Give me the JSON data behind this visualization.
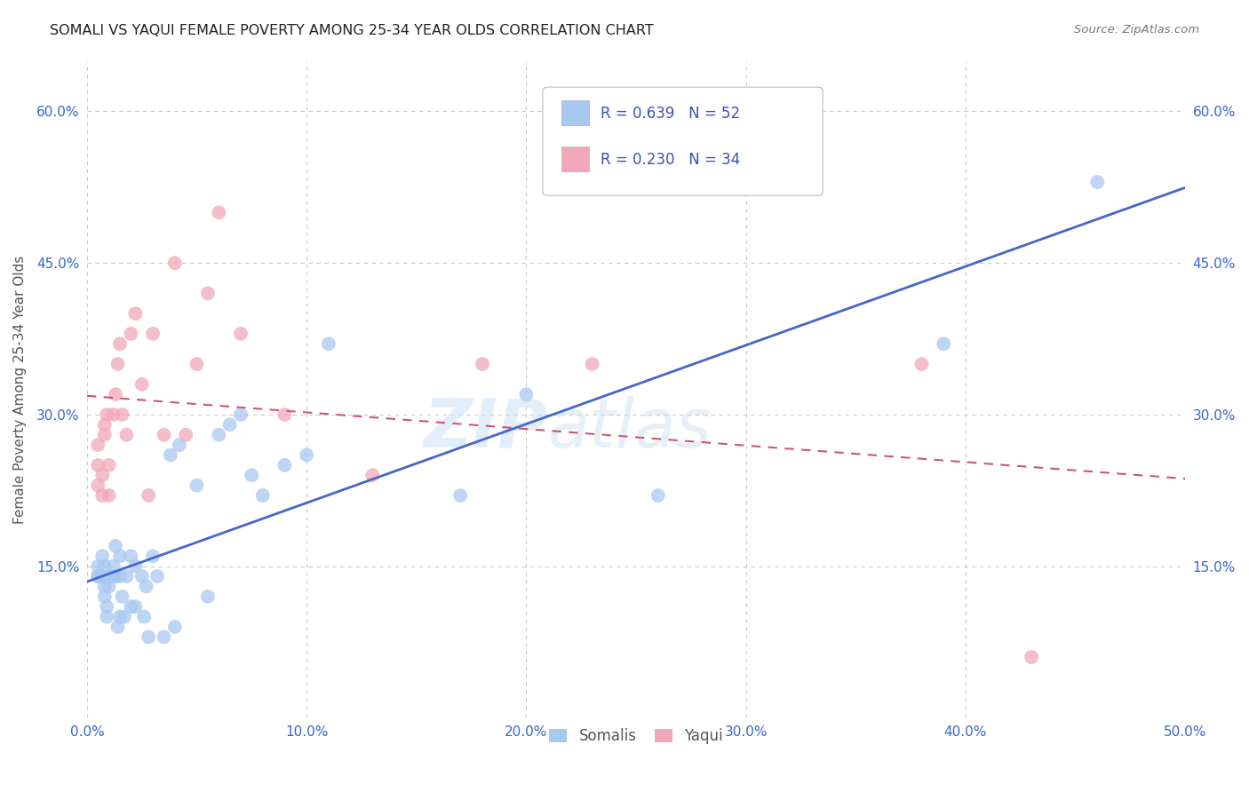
{
  "title": "SOMALI VS YAQUI FEMALE POVERTY AMONG 25-34 YEAR OLDS CORRELATION CHART",
  "source": "Source: ZipAtlas.com",
  "ylabel": "Female Poverty Among 25-34 Year Olds",
  "xlim": [
    0.0,
    0.5
  ],
  "ylim": [
    0.0,
    0.65
  ],
  "xticks": [
    0.0,
    0.1,
    0.2,
    0.3,
    0.4,
    0.5
  ],
  "yticks": [
    0.0,
    0.15,
    0.3,
    0.45,
    0.6
  ],
  "xtick_labels": [
    "0.0%",
    "10.0%",
    "20.0%",
    "30.0%",
    "40.0%",
    "50.0%"
  ],
  "ytick_labels": [
    "",
    "15.0%",
    "30.0%",
    "45.0%",
    "60.0%"
  ],
  "background_color": "#ffffff",
  "grid_color": "#c8c8c8",
  "watermark": "ZIPatlas",
  "somali_color": "#a8c8f0",
  "yaqui_color": "#f0a8b8",
  "somali_line_color": "#4466cc",
  "yaqui_line_color": "#cc5577",
  "somali_R": 0.639,
  "somali_N": 52,
  "yaqui_R": 0.23,
  "yaqui_N": 34,
  "somali_x": [
    0.005,
    0.005,
    0.005,
    0.007,
    0.007,
    0.008,
    0.008,
    0.008,
    0.009,
    0.009,
    0.01,
    0.01,
    0.012,
    0.012,
    0.013,
    0.013,
    0.014,
    0.015,
    0.015,
    0.015,
    0.016,
    0.017,
    0.018,
    0.02,
    0.02,
    0.022,
    0.022,
    0.025,
    0.026,
    0.027,
    0.028,
    0.03,
    0.032,
    0.035,
    0.038,
    0.04,
    0.042,
    0.05,
    0.055,
    0.06,
    0.065,
    0.07,
    0.075,
    0.08,
    0.09,
    0.1,
    0.11,
    0.17,
    0.2,
    0.26,
    0.39,
    0.46
  ],
  "somali_y": [
    0.14,
    0.15,
    0.14,
    0.16,
    0.14,
    0.15,
    0.13,
    0.12,
    0.1,
    0.11,
    0.13,
    0.14,
    0.14,
    0.15,
    0.17,
    0.14,
    0.09,
    0.1,
    0.14,
    0.16,
    0.12,
    0.1,
    0.14,
    0.11,
    0.16,
    0.15,
    0.11,
    0.14,
    0.1,
    0.13,
    0.08,
    0.16,
    0.14,
    0.08,
    0.26,
    0.09,
    0.27,
    0.23,
    0.12,
    0.28,
    0.29,
    0.3,
    0.24,
    0.22,
    0.25,
    0.26,
    0.37,
    0.22,
    0.32,
    0.22,
    0.37,
    0.53
  ],
  "yaqui_x": [
    0.005,
    0.005,
    0.005,
    0.007,
    0.007,
    0.008,
    0.008,
    0.009,
    0.01,
    0.01,
    0.012,
    0.013,
    0.014,
    0.015,
    0.016,
    0.018,
    0.02,
    0.022,
    0.025,
    0.028,
    0.03,
    0.035,
    0.04,
    0.045,
    0.05,
    0.055,
    0.06,
    0.07,
    0.09,
    0.13,
    0.18,
    0.23,
    0.38,
    0.43
  ],
  "yaqui_y": [
    0.23,
    0.25,
    0.27,
    0.22,
    0.24,
    0.28,
    0.29,
    0.3,
    0.25,
    0.22,
    0.3,
    0.32,
    0.35,
    0.37,
    0.3,
    0.28,
    0.38,
    0.4,
    0.33,
    0.22,
    0.38,
    0.28,
    0.45,
    0.28,
    0.35,
    0.42,
    0.5,
    0.38,
    0.3,
    0.24,
    0.35,
    0.35,
    0.35,
    0.06
  ]
}
